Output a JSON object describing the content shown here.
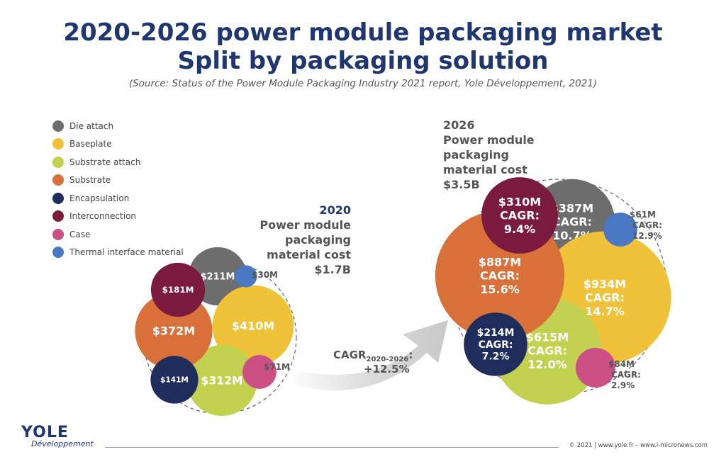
{
  "header": {
    "title_line1": "2020-2026 power module packaging market",
    "title_line2": "Split by packaging solution",
    "source": "(Source: Status of the Power Module Packaging Industry 2021 report, Yole Développement, 2021)"
  },
  "chart_data": {
    "type": "bubble",
    "legend": [
      {
        "name": "Die attach",
        "color": "#6d6d6d"
      },
      {
        "name": "Baseplate",
        "color": "#f0c23a"
      },
      {
        "name": "Substrate attach",
        "color": "#c2d14f"
      },
      {
        "name": "Substrate",
        "color": "#d9703a"
      },
      {
        "name": "Encapsulation",
        "color": "#1f2d5c"
      },
      {
        "name": "Interconnection",
        "color": "#7a1a3e"
      },
      {
        "name": "Case",
        "color": "#cc4f86"
      },
      {
        "name": "Thermal interface material",
        "color": "#4a78c2"
      }
    ],
    "groups": [
      {
        "year": "2020",
        "caption": [
          "Power module",
          "packaging",
          "material cost",
          "$1.7B"
        ],
        "total": "$1.7B",
        "items": [
          {
            "category": "Die attach",
            "value": 211,
            "label": "$211M",
            "cagr": ""
          },
          {
            "category": "Baseplate",
            "value": 410,
            "label": "$410M",
            "cagr": ""
          },
          {
            "category": "Substrate attach",
            "value": 312,
            "label": "$312M",
            "cagr": ""
          },
          {
            "category": "Substrate",
            "value": 372,
            "label": "$372M",
            "cagr": ""
          },
          {
            "category": "Encapsulation",
            "value": 141,
            "label": "$141M",
            "cagr": ""
          },
          {
            "category": "Interconnection",
            "value": 181,
            "label": "$181M",
            "cagr": ""
          },
          {
            "category": "Case",
            "value": 71,
            "label": "$71M",
            "cagr": ""
          },
          {
            "category": "Thermal interface material",
            "value": 30,
            "label": "$30M",
            "cagr": ""
          }
        ]
      },
      {
        "year": "2026",
        "caption": [
          "Power module",
          "packaging",
          "material cost",
          "$3.5B"
        ],
        "total": "$3.5B",
        "items": [
          {
            "category": "Die attach",
            "value": 387,
            "label": "$387M",
            "cagr": "10.7%"
          },
          {
            "category": "Baseplate",
            "value": 934,
            "label": "$934M",
            "cagr": "14.7%"
          },
          {
            "category": "Substrate attach",
            "value": 615,
            "label": "$615M",
            "cagr": "12.0%"
          },
          {
            "category": "Substrate",
            "value": 887,
            "label": "$887M",
            "cagr": "15.6%"
          },
          {
            "category": "Encapsulation",
            "value": 214,
            "label": "$214M",
            "cagr": "7.2%"
          },
          {
            "category": "Interconnection",
            "value": 310,
            "label": "$310M",
            "cagr": "9.4%"
          },
          {
            "category": "Case",
            "value": 84,
            "label": "$84M",
            "cagr": "2.9%"
          },
          {
            "category": "Thermal interface material",
            "value": 61,
            "label": "$61M",
            "cagr": "12.9%"
          }
        ]
      }
    ],
    "arrow": {
      "label": "CAGR",
      "subscript": "2020-2026",
      "suffix": ":",
      "value": "+12.5%"
    },
    "cagr_word": "CAGR:"
  },
  "footer": {
    "logo_name": "YOLE",
    "logo_sub": "Développement",
    "copyright": "© 2021 | www.yole.fr – www.i-micronews.com"
  }
}
